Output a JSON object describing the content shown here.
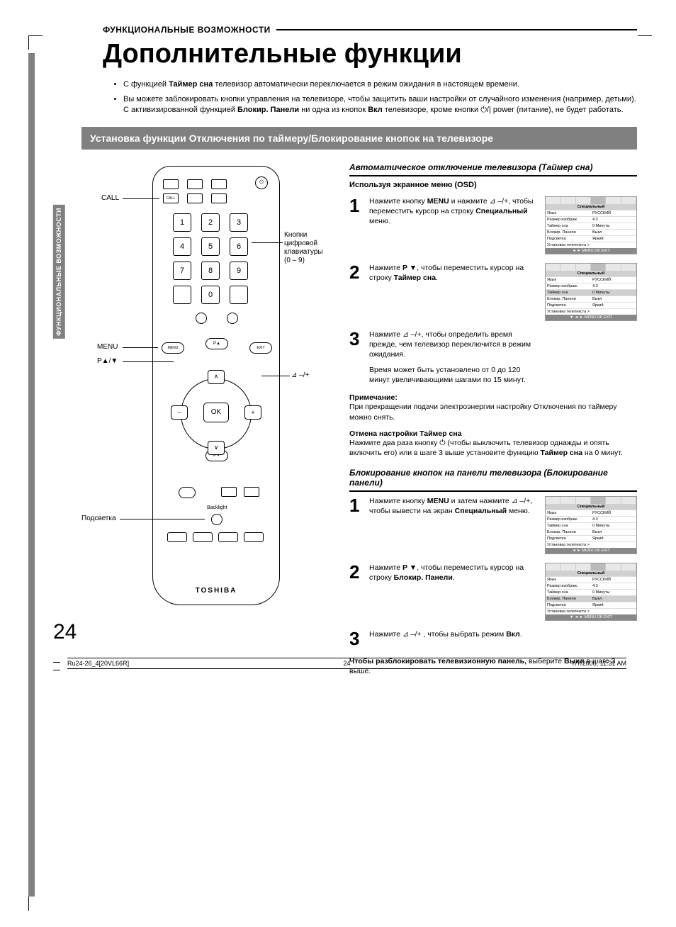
{
  "section_label": "ФУНКЦИОНАЛЬНЫЕ ВОЗМОЖНОСТИ",
  "page_title": "Дополнительные функции",
  "intro": [
    {
      "pre": "С функцией ",
      "b": "Таймер сна",
      "post": " телевизор автоматически переключается в режим ожидания в настоящем времени."
    },
    {
      "pre": "Вы можете заблокировать кнопки управления на телевизоре, чтобы защитить ваши настройки от случайного изменения (например, детьми). С активизированной функцией ",
      "b": "Блокир. Панели",
      "post": " ни одна из кнопок ",
      "b2": "Вкл",
      "post2": " телевизоре, кроме кнопки ⏻/| power (питание), не будет работать."
    }
  ],
  "banner": "Установка функции Отключения по таймеру/Блокирование кнопок на телевизоре",
  "side_tab": "ФУНКЦИОНАЛЬНЫЕ\nВОЗМОЖНОСТИ",
  "remote": {
    "labels": {
      "call": "CALL",
      "digits": "Кнопки цифровой клавиатуры (0 – 9)",
      "menu": "MENU",
      "p_arrows": "P▲/▼",
      "vol": "⊿ –/+",
      "backlight_side": "Подсветка",
      "backlight": "Backlight",
      "brand": "TOSHIBA",
      "ok": "OK",
      "menu_btn": "MENU",
      "exit_btn": "EXIT",
      "p_up": "P▲",
      "p_down": "P▼"
    }
  },
  "sec1": {
    "head": "Автоматическое отключение телевизора (Таймер сна)",
    "subhead": "Используя экранное меню (OSD)",
    "steps": [
      {
        "n": "1",
        "t": "Нажмите кнопку <b>MENU</b> и нажмите ⊿ –/+, чтобы переместить курсор на строку <b>Специальный</b> меню."
      },
      {
        "n": "2",
        "t": "Нажмите <b>P ▼</b>, чтобы переместить курсор на строку <b>Таймер сна</b>."
      },
      {
        "n": "3",
        "t": "Нажмите ⊿ –/+, чтобы определить время прежде, чем телевизор переключится в режим ожидания."
      }
    ],
    "extra": "Время может быть установлено от 0 до 120 минут увеличивающими шагами по 15 минут.",
    "note_h": "Примечание:",
    "note": "При прекращении подачи электроэнергии настройку Отключения по таймеру можно снять.",
    "cancel_h": "Отмена настройки Таймер сна",
    "cancel": "Нажмите два раза кнопку ⏻ (чтобы выключить телевизор однажды и опять включить его) или в шаге 3 выше установите функцию <b>Таймер сна</b> на 0 минут."
  },
  "sec2": {
    "head": "Блокирование кнопок на панели телевизора (Блокирование панели)",
    "steps": [
      {
        "n": "1",
        "t": "Нажмите кнопку <b>MENU</b> и затем нажмите ⊿ –/+, чтобы вывести на экран <b>Специальный</b> меню."
      },
      {
        "n": "2",
        "t": "Нажмите <b>P ▼</b>, чтобы переместить курсор на строку <b>Блокир. Панели</b>."
      },
      {
        "n": "3",
        "t": "Нажмите ⊿ –/+ , чтобы выбрать режим <b>Вкл</b>."
      }
    ],
    "unlock_h": "Чтобы разблокировать телевизионную панель,",
    "unlock": "выберите <b>Выкл</b> в шаге 3 выше."
  },
  "osd": {
    "title": "Специальный",
    "rows": [
      {
        "k": "Язык",
        "v": "РУССКИЙ"
      },
      {
        "k": "Размер изображ.",
        "v": "4:3"
      },
      {
        "k": "Таймер сна",
        "v": "0 Минуты"
      },
      {
        "k": "Блокир. Панели",
        "v": "Выкл"
      },
      {
        "k": "Подсветка",
        "v": "Яркий"
      },
      {
        "k": "Установка телетекста >",
        "v": ""
      }
    ],
    "foot1": "◄ ► MENU OK EXIT",
    "foot2": "▼  ◄ ► MENU OK EXIT"
  },
  "page_number": "24",
  "footer": {
    "file": "Ru24-26_4[20VL66R]",
    "pg": "24",
    "stamp": "7/7/2006, 11:31 AM"
  }
}
